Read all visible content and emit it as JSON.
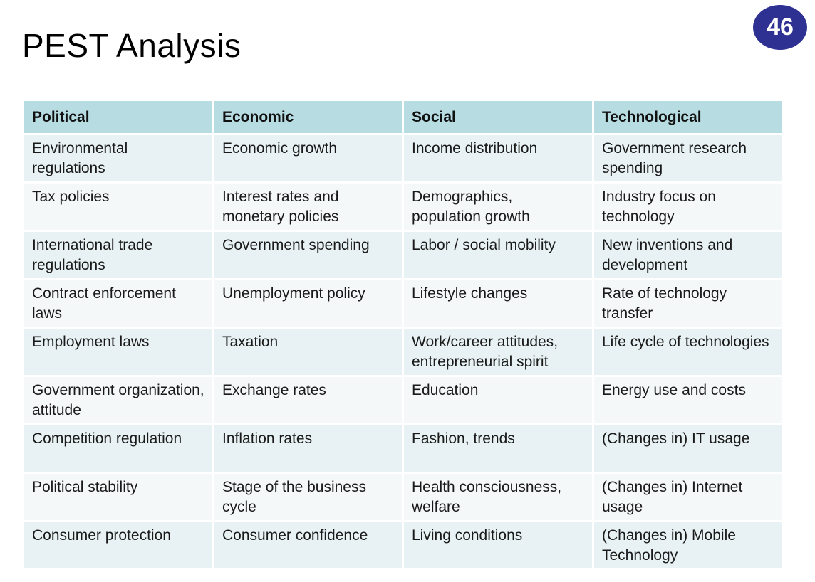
{
  "slide": {
    "title": "PEST Analysis",
    "page_number": "46"
  },
  "table": {
    "headers": [
      "Political",
      "Economic",
      "Social",
      "Technological"
    ],
    "rows": [
      [
        "Environmental regulations",
        "Economic growth",
        "Income distribution",
        "Government research spending"
      ],
      [
        "Tax policies",
        "Interest rates and monetary policies",
        "Demographics, population growth",
        "Industry focus on technology"
      ],
      [
        "International trade regulations",
        "Government spending",
        "Labor / social mobility",
        "New inventions and development"
      ],
      [
        "Contract enforcement laws",
        "Unemployment policy",
        "Lifestyle changes",
        "Rate of technology transfer"
      ],
      [
        "Employment laws",
        "Taxation",
        "Work/career attitudes, entrepreneurial spirit",
        "Life cycle of technologies"
      ],
      [
        "Government organization, attitude",
        "Exchange rates",
        "Education",
        "Energy use and costs"
      ],
      [
        "Competition regulation",
        "Inflation rates",
        "Fashion, trends",
        "(Changes in) IT usage"
      ],
      [
        "Political stability",
        "Stage of the business cycle",
        "Health consciousness, welfare",
        "(Changes in) Internet usage"
      ],
      [
        "Consumer protection",
        "Consumer confidence",
        "Living conditions",
        "(Changes in) Mobile Technology"
      ]
    ]
  },
  "colors": {
    "header_bg": "#b7dde3",
    "row_bg_odd": "#e8f2f4",
    "row_bg_even": "#f4f8f9",
    "badge_bg": "#2e3192"
  }
}
